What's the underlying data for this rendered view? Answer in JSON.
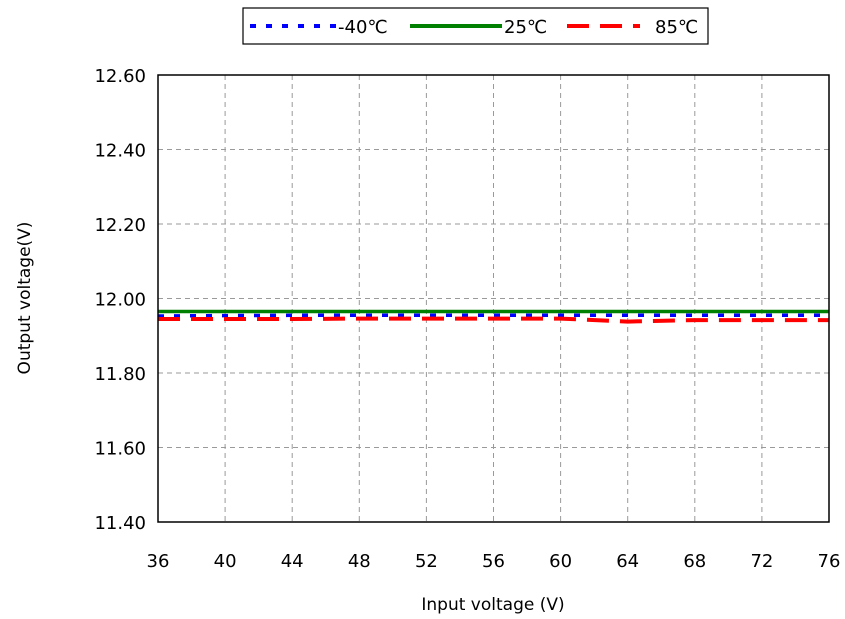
{
  "chart_data": {
    "type": "line",
    "xlabel": "Input voltage (V)",
    "ylabel": "Output voltage(V)",
    "xlim": [
      36,
      76
    ],
    "ylim": [
      11.4,
      12.6
    ],
    "x_ticks": [
      "36",
      "40",
      "44",
      "48",
      "52",
      "56",
      "60",
      "64",
      "68",
      "72",
      "76"
    ],
    "y_ticks": [
      "12.60",
      "12.40",
      "12.20",
      "12.00",
      "11.80",
      "11.60",
      "11.40"
    ],
    "grid": true,
    "legend_position": "top",
    "series": [
      {
        "name": "-40℃",
        "color": "#0000ff",
        "dash": "dotted",
        "x": [
          36,
          40,
          44,
          48,
          52,
          56,
          60,
          64,
          68,
          72,
          76
        ],
        "values": [
          11.953,
          11.954,
          11.955,
          11.955,
          11.955,
          11.955,
          11.955,
          11.955,
          11.955,
          11.955,
          11.955
        ]
      },
      {
        "name": "25℃",
        "color": "#008000",
        "dash": "solid",
        "x": [
          36,
          40,
          44,
          48,
          52,
          56,
          60,
          64,
          68,
          72,
          76
        ],
        "values": [
          11.965,
          11.965,
          11.965,
          11.965,
          11.965,
          11.965,
          11.965,
          11.965,
          11.965,
          11.965,
          11.965
        ]
      },
      {
        "name": "85℃",
        "color": "#ff0000",
        "dash": "dashed",
        "x": [
          36,
          40,
          44,
          48,
          52,
          56,
          60,
          64,
          68,
          72,
          76
        ],
        "values": [
          11.945,
          11.945,
          11.945,
          11.946,
          11.946,
          11.946,
          11.946,
          11.938,
          11.942,
          11.942,
          11.942
        ]
      }
    ]
  }
}
